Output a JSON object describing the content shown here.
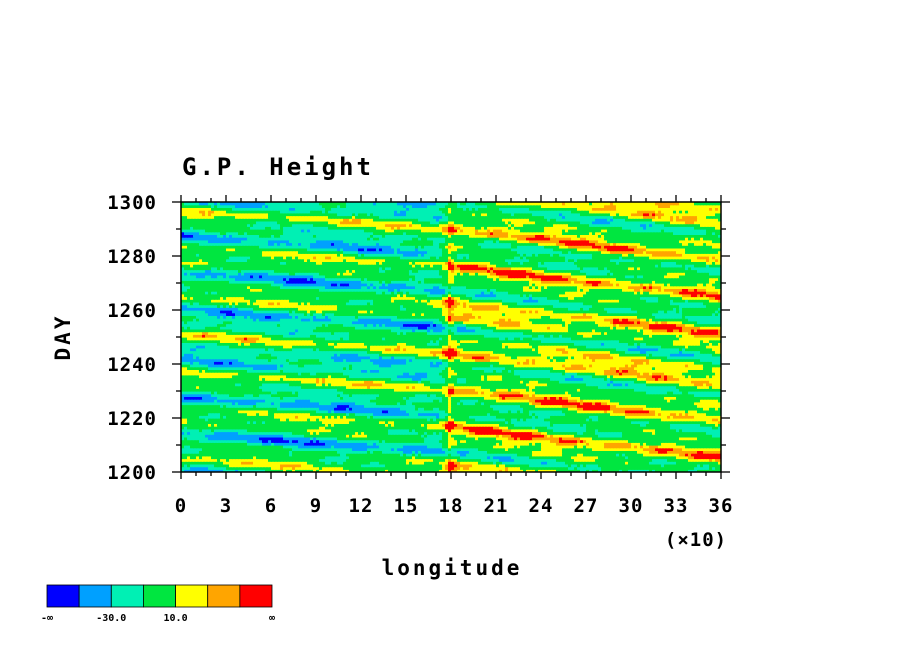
{
  "chart_data": {
    "type": "heatmap",
    "title": "G.P. Height",
    "xlabel": "longitude",
    "ylabel": "DAY",
    "x_multiplier_label": "(×10)",
    "xlim": [
      0,
      36
    ],
    "ylim": [
      1200,
      1300
    ],
    "x_ticks": [
      "0",
      "3",
      "6",
      "9",
      "12",
      "15",
      "18",
      "21",
      "24",
      "27",
      "30",
      "33",
      "36"
    ],
    "y_ticks": [
      "1200",
      "1220",
      "1240",
      "1260",
      "1280",
      "1300"
    ],
    "colorbar": {
      "colors": [
        "#0000ff",
        "#00a0ff",
        "#00f0b4",
        "#00e640",
        "#ffff00",
        "#ffa500",
        "#ff0000"
      ],
      "labels": [
        "-∞",
        "-30.0",
        "10.0",
        "∞"
      ]
    }
  }
}
